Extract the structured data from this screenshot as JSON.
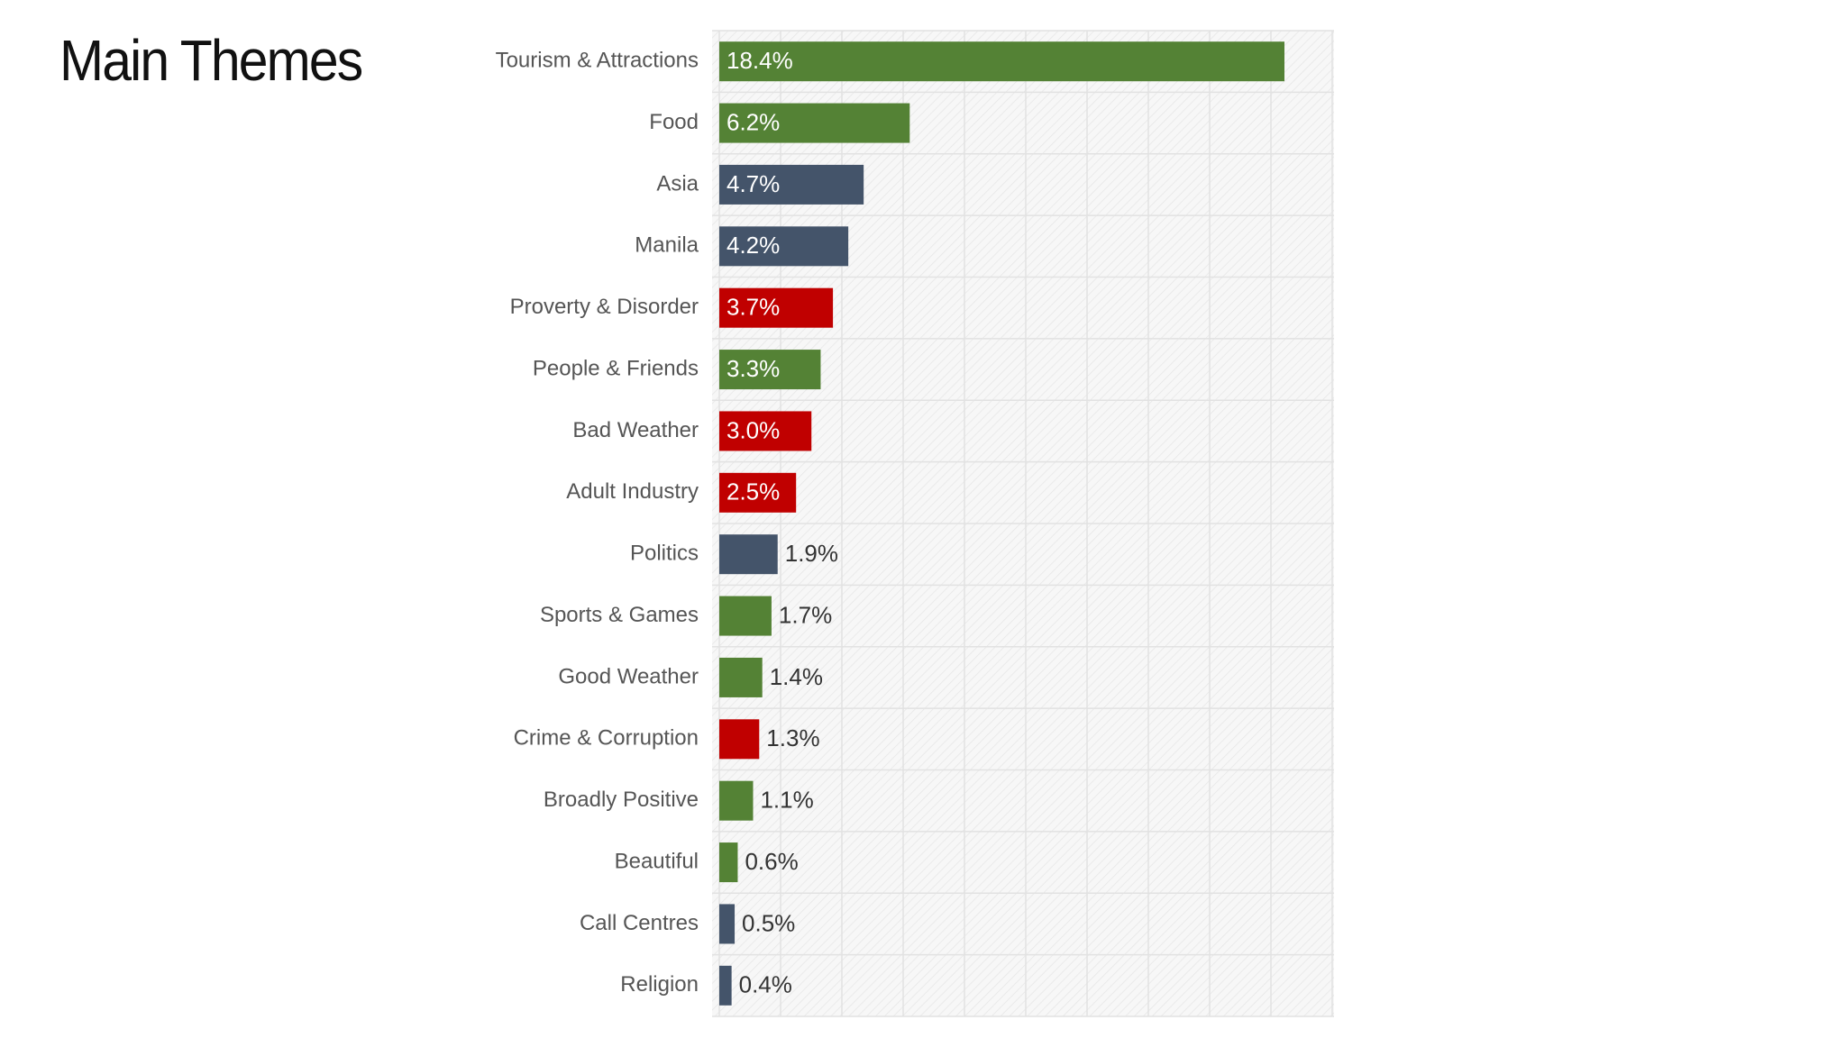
{
  "slide": {
    "title": "Main Themes"
  },
  "colors": {
    "positive": "#548235",
    "neutral": "#44546a",
    "negative": "#c00000",
    "label_inside": "#ffffff",
    "label_outside": "#333333"
  },
  "chart_data": {
    "type": "bar",
    "orientation": "horizontal",
    "categories": [
      "Tourism & Attractions",
      "Food",
      "Asia",
      "Manila",
      "Proverty & Disorder",
      "People & Friends",
      "Bad Weather",
      "Adult Industry",
      "Politics",
      "Sports & Games",
      "Good Weather",
      "Crime & Corruption",
      "Broadly Positive",
      "Beautiful",
      "Call Centres",
      "Religion"
    ],
    "values": [
      18.4,
      6.2,
      4.7,
      4.2,
      3.7,
      3.3,
      3.0,
      2.5,
      1.9,
      1.7,
      1.4,
      1.3,
      1.1,
      0.6,
      0.5,
      0.4
    ],
    "value_labels": [
      "18.4%",
      "6.2%",
      "4.7%",
      "4.2%",
      "3.7%",
      "3.3%",
      "3.0%",
      "2.5%",
      "1.9%",
      "1.7%",
      "1.4%",
      "1.3%",
      "1.1%",
      "0.6%",
      "0.5%",
      "0.4%"
    ],
    "bar_colors": [
      "positive",
      "positive",
      "neutral",
      "neutral",
      "negative",
      "positive",
      "negative",
      "negative",
      "neutral",
      "positive",
      "positive",
      "negative",
      "positive",
      "positive",
      "neutral",
      "neutral"
    ],
    "xlim": [
      0,
      20
    ],
    "gridlines": true,
    "legend": "none",
    "xlabel": "",
    "ylabel": ""
  }
}
